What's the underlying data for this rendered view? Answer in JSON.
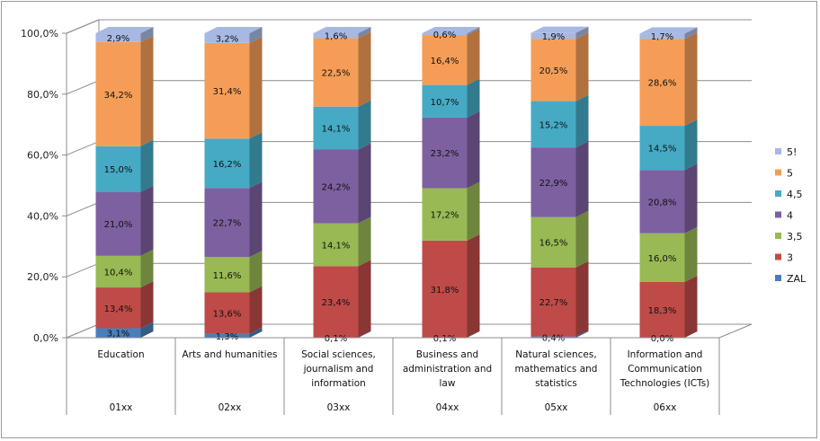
{
  "chart_data": {
    "type": "bar",
    "stacked": true,
    "three_d": true,
    "title": "",
    "xlabel": "",
    "ylabel": "",
    "ylim": [
      0,
      100
    ],
    "y_ticks": [
      "0,0%",
      "20,0%",
      "40,0%",
      "60,0%",
      "80,0%",
      "100,0%"
    ],
    "grid": true,
    "legend_position": "right",
    "categories": [
      {
        "name": "Education",
        "code": "01xx"
      },
      {
        "name": "Arts and humanities",
        "code": "02xx"
      },
      {
        "name": "Social sciences, journalism and information",
        "code": "03xx"
      },
      {
        "name": "Business and administration and law",
        "code": "04xx"
      },
      {
        "name": "Natural sciences, mathematics and statistics",
        "code": "05xx"
      },
      {
        "name": "Information and Communication Technologies (ICTs)",
        "code": "06xx"
      }
    ],
    "series": [
      {
        "name": "ZAL",
        "color": "#4a7ebb",
        "values": [
          3.1,
          1.3,
          0.1,
          0.1,
          0.4,
          0.0
        ],
        "labels": [
          "3,1%",
          "1,3%",
          "0,1%",
          "0,1%",
          "0,4%",
          "0,0%"
        ]
      },
      {
        "name": "3",
        "color": "#be4b48",
        "values": [
          13.4,
          13.6,
          23.4,
          31.8,
          22.7,
          18.3
        ],
        "labels": [
          "13,4%",
          "13,6%",
          "23,4%",
          "31,8%",
          "22,7%",
          "18,3%"
        ]
      },
      {
        "name": "3,5",
        "color": "#98b954",
        "values": [
          10.4,
          11.6,
          14.1,
          17.2,
          16.5,
          16.0
        ],
        "labels": [
          "10,4%",
          "11,6%",
          "14,1%",
          "17,2%",
          "16,5%",
          "16,0%"
        ]
      },
      {
        "name": "4",
        "color": "#7d60a0",
        "values": [
          21.0,
          22.7,
          24.2,
          23.2,
          22.9,
          20.8
        ],
        "labels": [
          "21,0%",
          "22,7%",
          "24,2%",
          "23,2%",
          "22,9%",
          "20,8%"
        ]
      },
      {
        "name": "4,5",
        "color": "#46aac5",
        "values": [
          15.0,
          16.2,
          14.1,
          10.7,
          15.2,
          14.5
        ],
        "labels": [
          "15,0%",
          "16,2%",
          "14,1%",
          "10,7%",
          "15,2%",
          "14,5%"
        ]
      },
      {
        "name": "5",
        "color": "#f59d56",
        "values": [
          34.2,
          31.4,
          22.5,
          16.4,
          20.5,
          28.6
        ],
        "labels": [
          "34,2%",
          "31,4%",
          "22,5%",
          "16,4%",
          "20,5%",
          "28,6%"
        ]
      },
      {
        "name": "5!",
        "color": "#a7b9e3",
        "values": [
          2.9,
          3.2,
          1.6,
          0.6,
          1.9,
          1.7
        ],
        "labels": [
          "2,9%",
          "3,2%",
          "1,6%",
          "0,6%",
          "1,9%",
          "1,7%"
        ]
      }
    ]
  }
}
